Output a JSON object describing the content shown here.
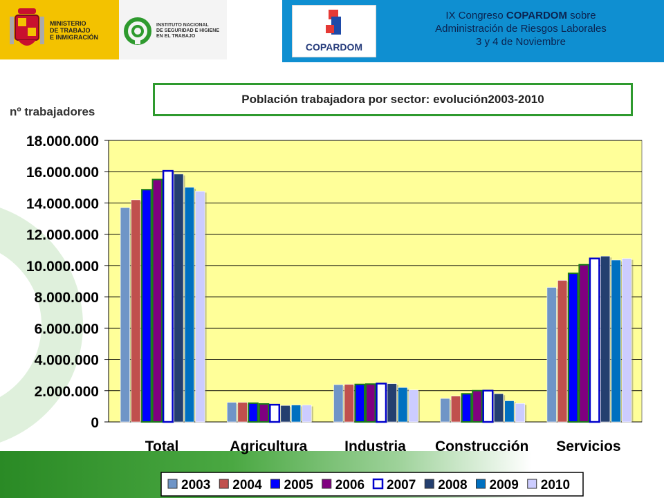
{
  "header": {
    "ministerio": [
      "MINISTERIO",
      "DE TRABAJO",
      "E INMIGRACIÓN"
    ],
    "insht": [
      "INSTITUTO NACIONAL",
      "DE SEGURIDAD E HIGIENE",
      "EN EL TRABAJO"
    ],
    "copardom": "COPARDOM",
    "congress_line1_pre": "IX Congreso ",
    "congress_line1_bold": "COPARDOM",
    "congress_line1_post": " sobre",
    "congress_line2": "Administración de Riesgos Laborales",
    "congress_line3": "3 y 4 de Noviembre"
  },
  "chart_data": {
    "type": "bar",
    "title": "Población trabajadora por sector: evolución2003-2010",
    "ylabel": "nº trabajadores",
    "xlabel": "",
    "categories": [
      "Total",
      "Agricultura",
      "Industria",
      "Construcción",
      "Servicios"
    ],
    "ylim": [
      0,
      18000000
    ],
    "yticks": [
      "0",
      "2.000.000",
      "4.000.000",
      "6.000.000",
      "8.000.000",
      "10.000.000",
      "12.000.000",
      "14.000.000",
      "16.000.000",
      "18.000.000"
    ],
    "grid": true,
    "legend_position": "bottom",
    "plot_background": "#ffff99",
    "series": [
      {
        "name": "2003",
        "color": "#6f95c7",
        "values": [
          13700000,
          1250000,
          2380000,
          1500000,
          8600000
        ]
      },
      {
        "name": "2004",
        "color": "#c0504d",
        "values": [
          14200000,
          1250000,
          2400000,
          1650000,
          9050000
        ]
      },
      {
        "name": "2005",
        "color": "#0000ff",
        "values": [
          14850000,
          1200000,
          2400000,
          1800000,
          9500000
        ]
      },
      {
        "name": "2006",
        "color": "#800080",
        "values": [
          15500000,
          1150000,
          2420000,
          2000000,
          10050000
        ]
      },
      {
        "name": "2007",
        "color": "#ffffff",
        "values": [
          16050000,
          1100000,
          2450000,
          2000000,
          10450000
        ]
      },
      {
        "name": "2008",
        "color": "#243f6f",
        "values": [
          15850000,
          1050000,
          2450000,
          1800000,
          10600000
        ]
      },
      {
        "name": "2009",
        "color": "#0070c0",
        "values": [
          15000000,
          1080000,
          2200000,
          1350000,
          10350000
        ]
      },
      {
        "name": "2010",
        "color": "#ccccff",
        "values": [
          14750000,
          1080000,
          2050000,
          1180000,
          10450000
        ]
      }
    ]
  }
}
